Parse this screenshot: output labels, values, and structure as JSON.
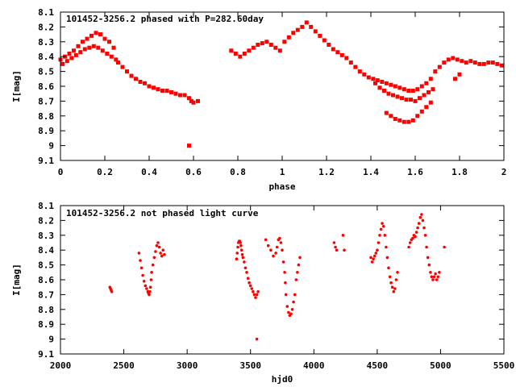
{
  "chart_data": [
    {
      "type": "scatter",
      "title": "101452-3256.2 phased with P=282.60day",
      "xlabel": "phase",
      "ylabel": "I[mag]",
      "xlim": [
        0,
        2
      ],
      "ylim": [
        8.1,
        9.1
      ],
      "y_inverted": true,
      "grid": false,
      "marker_color": "#ff0000",
      "marker": "square",
      "x_ticks": [
        "0",
        "0.2",
        "0.4",
        "0.6",
        "0.8",
        "1",
        "1.2",
        "1.4",
        "1.6",
        "1.8",
        "2"
      ],
      "y_ticks": [
        "8.1",
        "8.2",
        "8.3",
        "8.4",
        "8.5",
        "8.6",
        "8.7",
        "8.8",
        "8.9",
        "9",
        "9.1"
      ],
      "series": [
        {
          "x": [
            0.0,
            0.02,
            0.04,
            0.06,
            0.08,
            0.1,
            0.12,
            0.14,
            0.16,
            0.18,
            0.2,
            0.22,
            0.24,
            0.01,
            0.03,
            0.05,
            0.07,
            0.09,
            0.11,
            0.13,
            0.15,
            0.17,
            0.19,
            0.21,
            0.23,
            0.25,
            0.26,
            0.28,
            0.3,
            0.32,
            0.34,
            0.36,
            0.38,
            0.4,
            0.42,
            0.44,
            0.46,
            0.48,
            0.5,
            0.52,
            0.54,
            0.56,
            0.58,
            0.59,
            0.6,
            0.62,
            0.58,
            0.77,
            0.79,
            0.81,
            0.83,
            0.85,
            0.87,
            0.89,
            0.91,
            0.93,
            0.95,
            0.97,
            0.99,
            1.01,
            1.03,
            1.05,
            1.07,
            1.09,
            1.11,
            1.13,
            1.15,
            1.17,
            1.19,
            1.21,
            1.23,
            1.25,
            1.27,
            1.29,
            1.31,
            1.33,
            1.35,
            1.37,
            1.39,
            1.41,
            1.43,
            1.45,
            1.47,
            1.49,
            1.51,
            1.53,
            1.55,
            1.57,
            1.59,
            1.61,
            1.63,
            1.65,
            1.67,
            1.69,
            1.71,
            1.73,
            1.75,
            1.77,
            1.79,
            1.81,
            1.83,
            1.85,
            1.87,
            1.89,
            1.91,
            1.93,
            1.95,
            1.97,
            1.99,
            1.42,
            1.44,
            1.46,
            1.48,
            1.5,
            1.52,
            1.54,
            1.56,
            1.58,
            1.6,
            1.62,
            1.64,
            1.66,
            1.68,
            1.47,
            1.49,
            1.51,
            1.53,
            1.55,
            1.57,
            1.59,
            1.61,
            1.63,
            1.65,
            1.67,
            1.78,
            1.8
          ],
          "y": [
            8.42,
            8.4,
            8.38,
            8.36,
            8.33,
            8.3,
            8.28,
            8.26,
            8.24,
            8.25,
            8.28,
            8.3,
            8.34,
            8.45,
            8.43,
            8.41,
            8.39,
            8.37,
            8.35,
            8.34,
            8.33,
            8.34,
            8.36,
            8.38,
            8.4,
            8.42,
            8.44,
            8.47,
            8.5,
            8.53,
            8.55,
            8.57,
            8.58,
            8.6,
            8.61,
            8.62,
            8.63,
            8.63,
            8.64,
            8.65,
            8.66,
            8.66,
            8.68,
            8.7,
            8.71,
            8.7,
            9.0,
            8.36,
            8.38,
            8.4,
            8.38,
            8.36,
            8.34,
            8.32,
            8.31,
            8.3,
            8.32,
            8.34,
            8.36,
            8.3,
            8.27,
            8.24,
            8.22,
            8.2,
            8.17,
            8.2,
            8.23,
            8.26,
            8.29,
            8.32,
            8.35,
            8.37,
            8.39,
            8.41,
            8.44,
            8.47,
            8.5,
            8.52,
            8.54,
            8.55,
            8.56,
            8.57,
            8.58,
            8.59,
            8.6,
            8.61,
            8.62,
            8.63,
            8.63,
            8.62,
            8.6,
            8.58,
            8.55,
            8.5,
            8.47,
            8.44,
            8.42,
            8.41,
            8.42,
            8.43,
            8.44,
            8.43,
            8.44,
            8.45,
            8.45,
            8.44,
            8.44,
            8.45,
            8.46,
            8.58,
            8.61,
            8.63,
            8.65,
            8.66,
            8.67,
            8.68,
            8.69,
            8.69,
            8.7,
            8.68,
            8.66,
            8.64,
            8.62,
            8.78,
            8.8,
            8.82,
            8.83,
            8.84,
            8.84,
            8.83,
            8.8,
            8.77,
            8.74,
            8.71,
            8.55,
            8.52
          ]
        }
      ]
    },
    {
      "type": "scatter",
      "title": "101452-3256.2 not phased light curve",
      "xlabel": "hjd0",
      "ylabel": "I[mag]",
      "xlim": [
        2000,
        5500
      ],
      "ylim": [
        8.1,
        9.1
      ],
      "y_inverted": true,
      "grid": false,
      "marker_color": "#ff0000",
      "marker": "dot",
      "x_ticks": [
        "2000",
        "2500",
        "3000",
        "3500",
        "4000",
        "4500",
        "5000",
        "5500"
      ],
      "y_ticks": [
        "8.1",
        "8.2",
        "8.3",
        "8.4",
        "8.5",
        "8.6",
        "8.7",
        "8.8",
        "8.9",
        "9",
        "9.1"
      ],
      "series": [
        {
          "x": [
            2390,
            2395,
            2400,
            2405,
            2620,
            2630,
            2640,
            2650,
            2660,
            2670,
            2680,
            2690,
            2695,
            2700,
            2705,
            2710,
            2715,
            2720,
            2730,
            2740,
            2750,
            2760,
            2770,
            2780,
            2790,
            2800,
            2810,
            2820,
            3390,
            3395,
            3400,
            3405,
            3410,
            3415,
            3420,
            3425,
            3430,
            3435,
            3440,
            3450,
            3460,
            3470,
            3480,
            3490,
            3500,
            3510,
            3520,
            3530,
            3540,
            3550,
            3560,
            3550,
            3620,
            3640,
            3660,
            3680,
            3700,
            3710,
            3720,
            3730,
            3740,
            3750,
            3760,
            3770,
            3775,
            3780,
            3790,
            3800,
            3810,
            3820,
            3830,
            3840,
            3850,
            3860,
            3870,
            3880,
            3890,
            4160,
            4170,
            4180,
            4230,
            4240,
            4450,
            4460,
            4470,
            4480,
            4490,
            4500,
            4510,
            4520,
            4530,
            4540,
            4550,
            4560,
            4570,
            4580,
            4590,
            4600,
            4610,
            4620,
            4630,
            4640,
            4650,
            4660,
            4750,
            4760,
            4770,
            4780,
            4790,
            4800,
            4810,
            4820,
            4830,
            4840,
            4850,
            4860,
            4870,
            4880,
            4890,
            4900,
            4910,
            4920,
            4930,
            4940,
            4950,
            4960,
            4970,
            4980,
            4990,
            5030
          ],
          "y": [
            8.65,
            8.66,
            8.67,
            8.68,
            8.42,
            8.47,
            8.52,
            8.57,
            8.61,
            8.64,
            8.66,
            8.68,
            8.69,
            8.7,
            8.68,
            8.65,
            8.6,
            8.55,
            8.5,
            8.45,
            8.41,
            8.37,
            8.35,
            8.38,
            8.42,
            8.44,
            8.4,
            8.43,
            8.46,
            8.42,
            8.38,
            8.35,
            8.34,
            8.34,
            8.35,
            8.37,
            8.4,
            8.43,
            8.45,
            8.48,
            8.52,
            8.55,
            8.59,
            8.62,
            8.64,
            8.66,
            8.68,
            8.7,
            8.72,
            8.7,
            8.68,
            9.0,
            8.33,
            8.37,
            8.4,
            8.44,
            8.42,
            8.38,
            8.33,
            8.32,
            8.35,
            8.4,
            8.48,
            8.55,
            8.62,
            8.7,
            8.78,
            8.82,
            8.84,
            8.83,
            8.8,
            8.75,
            8.7,
            8.6,
            8.55,
            8.5,
            8.45,
            8.35,
            8.38,
            8.4,
            8.3,
            8.4,
            8.45,
            8.48,
            8.46,
            8.44,
            8.42,
            8.4,
            8.35,
            8.3,
            8.26,
            8.22,
            8.24,
            8.3,
            8.38,
            8.45,
            8.52,
            8.58,
            8.62,
            8.65,
            8.68,
            8.66,
            8.6,
            8.55,
            8.38,
            8.35,
            8.33,
            8.32,
            8.3,
            8.31,
            8.28,
            8.25,
            8.22,
            8.18,
            8.16,
            8.2,
            8.25,
            8.3,
            8.38,
            8.45,
            8.5,
            8.55,
            8.58,
            8.6,
            8.58,
            8.56,
            8.6,
            8.58,
            8.55,
            8.38
          ]
        }
      ]
    }
  ]
}
